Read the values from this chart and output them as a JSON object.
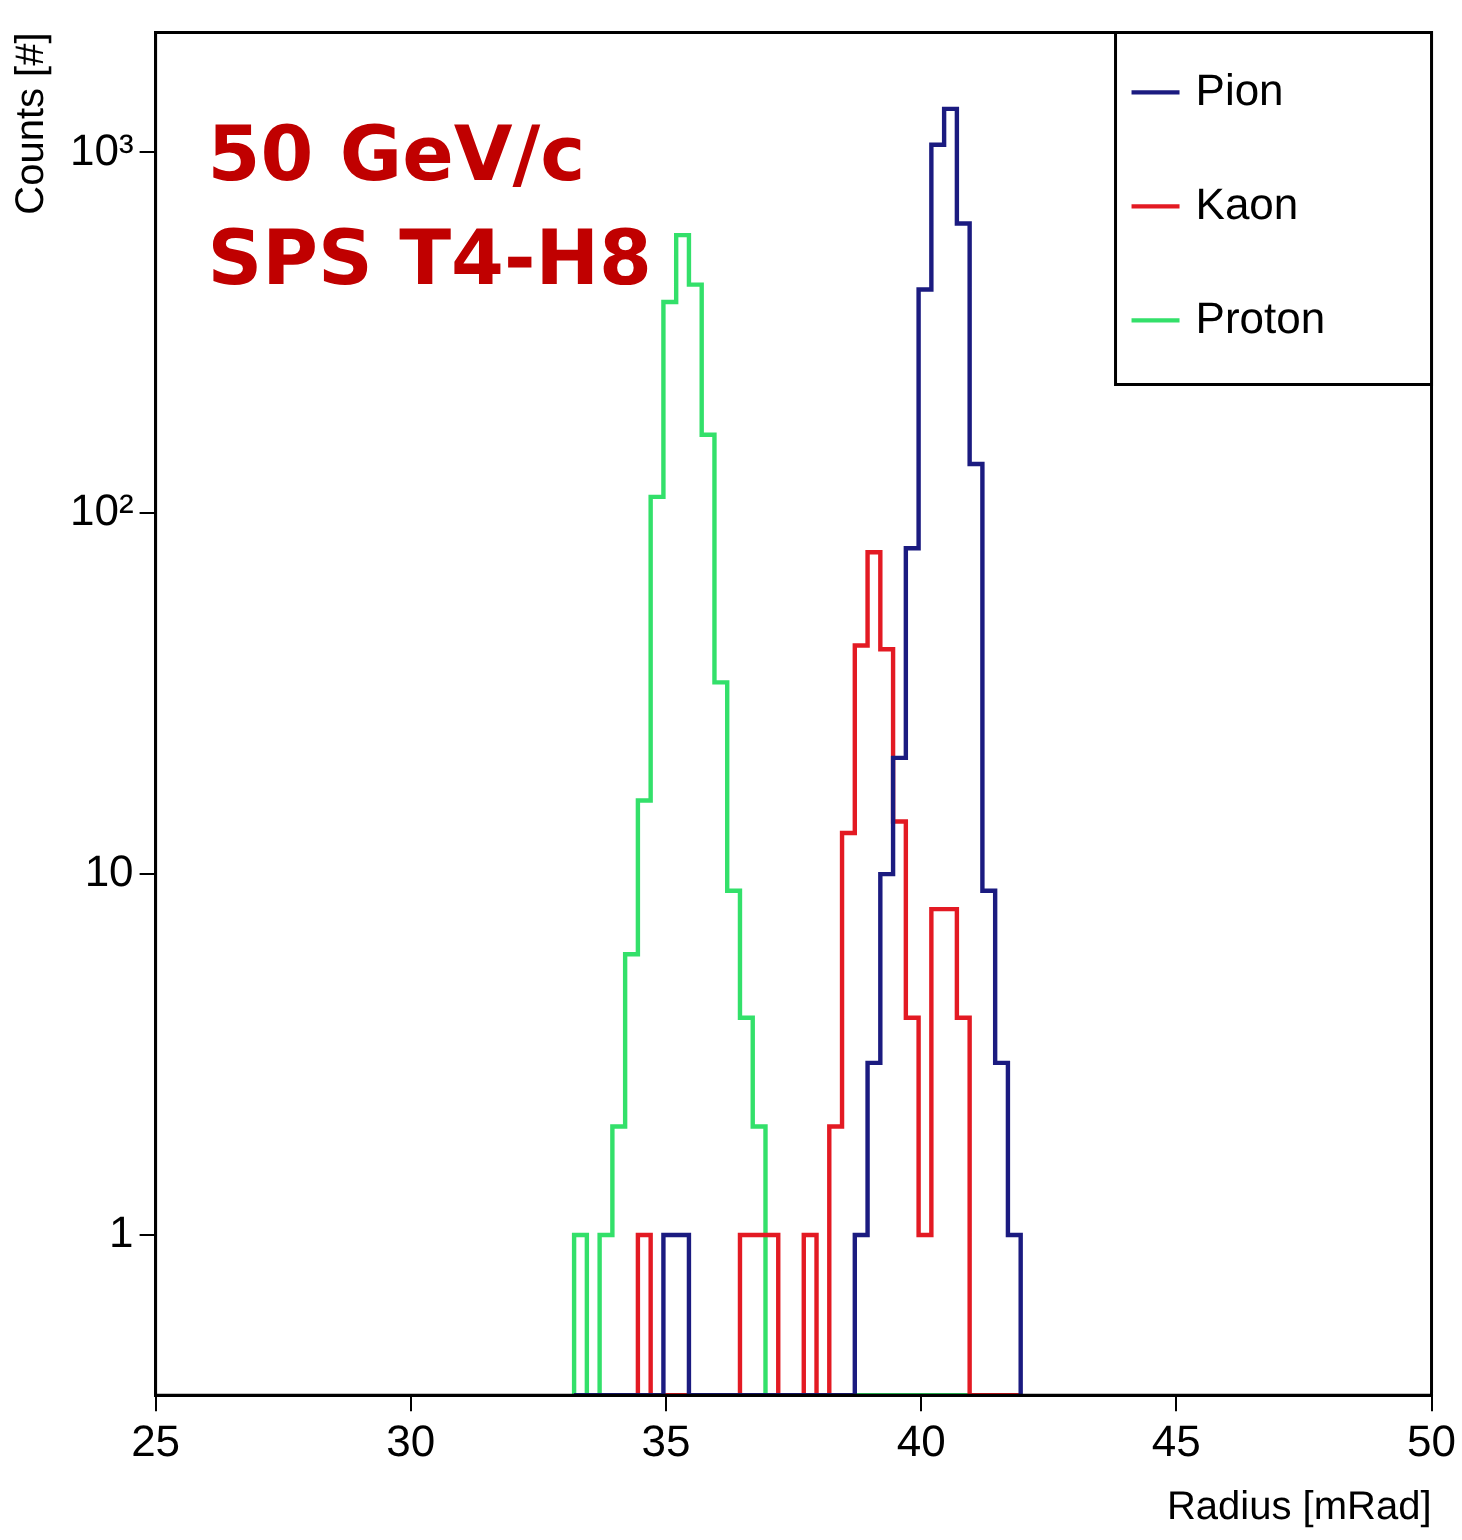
{
  "chart_data": {
    "type": "histogram",
    "xlabel": "Radius [mRad]",
    "ylabel": "Counts [#]",
    "annotations": [
      "50 GeV/c",
      "SPS T4-H8"
    ],
    "bins": [
      33.2,
      33.45,
      33.7,
      33.95,
      34.2,
      34.45,
      34.7,
      34.95,
      35.2,
      35.45,
      35.7,
      35.95,
      36.2,
      36.45,
      36.7,
      36.95,
      37.2,
      37.45,
      37.7,
      37.95,
      38.2,
      38.45,
      38.7,
      38.95,
      39.2,
      39.45,
      39.7,
      39.95,
      40.2,
      40.45,
      40.7,
      40.95,
      41.2,
      41.45,
      41.7,
      41.95
    ],
    "series": [
      {
        "name": "Pion",
        "color": "#1b1b80",
        "values": [
          null,
          null,
          null,
          null,
          null,
          null,
          null,
          1,
          1,
          null,
          null,
          null,
          null,
          null,
          null,
          null,
          null,
          null,
          null,
          null,
          null,
          null,
          1,
          3,
          10,
          21,
          80,
          417,
          1050,
          1320,
          635,
          137,
          9,
          3,
          1
        ]
      },
      {
        "name": "Kaon",
        "color": "#e31a23",
        "values": [
          null,
          null,
          null,
          null,
          null,
          1,
          null,
          null,
          null,
          null,
          null,
          null,
          null,
          1,
          1,
          1,
          null,
          null,
          1,
          null,
          2,
          13,
          43,
          78,
          42,
          14,
          4,
          1,
          8,
          8,
          4,
          null,
          null,
          null,
          null
        ]
      },
      {
        "name": "Proton",
        "color": "#33e06a",
        "values": [
          1,
          null,
          1,
          2,
          6,
          16,
          111,
          385,
          590,
          430,
          165,
          34,
          9,
          4,
          2,
          null,
          null,
          null,
          null,
          null,
          null,
          null,
          null,
          null,
          null,
          null,
          null,
          null,
          null,
          null,
          null,
          null,
          null,
          null,
          null
        ]
      }
    ],
    "xlim": [
      25,
      50
    ],
    "xticks": [
      25,
      30,
      35,
      40,
      45,
      50
    ],
    "ylim": [
      0.36,
      2150
    ],
    "yticks": [
      1,
      10,
      {
        "value": 100,
        "label": "10²"
      },
      {
        "value": 1000,
        "label": "10³"
      }
    ],
    "log": "y",
    "grid": false,
    "legend": "top right"
  }
}
